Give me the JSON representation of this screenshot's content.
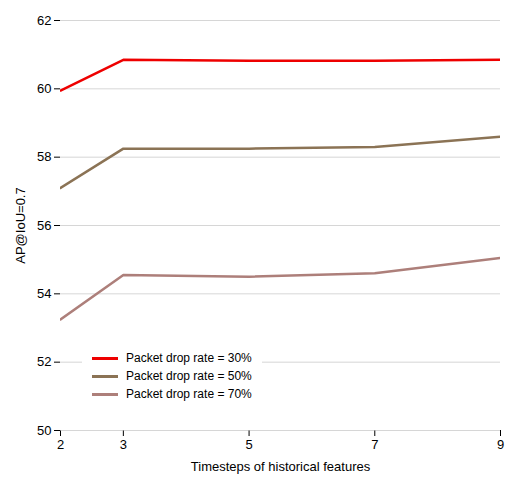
{
  "chart_data": {
    "type": "line",
    "x": [
      2,
      3,
      5,
      7,
      9
    ],
    "series": [
      {
        "name": "Packet drop rate = 30%",
        "color": "#EE0000",
        "values": [
          59.95,
          60.85,
          60.82,
          60.82,
          60.85
        ]
      },
      {
        "name": "Packet drop rate = 50%",
        "color": "#8B7355",
        "values": [
          57.1,
          58.25,
          58.25,
          58.3,
          58.6
        ]
      },
      {
        "name": "Packet drop rate = 70%",
        "color": "#AD7F7A",
        "values": [
          53.25,
          54.55,
          54.5,
          54.6,
          55.05
        ]
      }
    ],
    "xlabel": "Timesteps of historical features",
    "ylabel": "AP@IoU=0.7",
    "xlim": [
      2,
      9
    ],
    "ylim": [
      50,
      62
    ],
    "xticks": [
      2,
      3,
      5,
      7,
      9
    ],
    "yticks": [
      50,
      52,
      54,
      56,
      58,
      60,
      62
    ],
    "grid": "y",
    "legend": "lower left"
  }
}
